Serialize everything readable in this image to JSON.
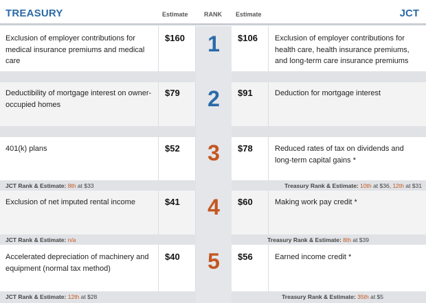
{
  "header": {
    "left_title": "TREASURY",
    "right_title": "JCT",
    "estimate_left": "Estimate",
    "rank": "RANK",
    "estimate_right": "Estimate"
  },
  "rows": [
    {
      "rank": "1",
      "treasury_desc": "Exclusion of employer contributions for medical insurance premiums and medical care",
      "treasury_est": "$160",
      "jct_est": "$106",
      "jct_desc": "Exclusion of employer contributions for health care, health insurance premiums, and long-term care insurance premiums"
    },
    {
      "rank": "2",
      "treasury_desc": "Deductibility of mortgage interest on owner-occupied homes",
      "treasury_est": "$79",
      "jct_est": "$91",
      "jct_desc": "Deduction for mortgage interest"
    },
    {
      "rank": "3",
      "treasury_desc": "401(k) plans",
      "treasury_est": "$52",
      "jct_est": "$78",
      "jct_desc": "Reduced rates of tax on dividends and long-term capital gains *",
      "left_note_label": "JCT Rank & Estimate:",
      "left_note_rank": "8th",
      "left_note_rest": "at $33",
      "right_note_label": "Treasury Rank & Estimate:",
      "right_note_rank": "10th",
      "right_note_rest": "at $36,",
      "right_note_rank2": "12th",
      "right_note_rest2": "at $31"
    },
    {
      "rank": "4",
      "treasury_desc": "Exclusion of net imputed rental income",
      "treasury_est": "$41",
      "jct_est": "$60",
      "jct_desc": "Making work pay credit *",
      "left_note_label": "JCT Rank & Estimate:",
      "left_note_rank": "n/a",
      "right_note_label": "Treasury Rank & Estimate:",
      "right_note_rank": "8th",
      "right_note_rest": "at $39"
    },
    {
      "rank": "5",
      "treasury_desc": "Accelerated depreciation of machinery and equipment (normal tax method)",
      "treasury_est": "$40",
      "jct_est": "$56",
      "jct_desc": "Earned income credit *",
      "left_note_label": "JCT Rank & Estimate:",
      "left_note_rank": "12th",
      "left_note_rest": "at $28",
      "right_note_label": "Treasury Rank & Estimate:",
      "right_note_rank": "35th",
      "right_note_rest": "at $5"
    }
  ],
  "colors": {
    "title_blue": "#2a6aa8",
    "rank_blue": "#2a6aa8",
    "rank_orange": "#c4571f",
    "highlight": "#c4571f"
  }
}
